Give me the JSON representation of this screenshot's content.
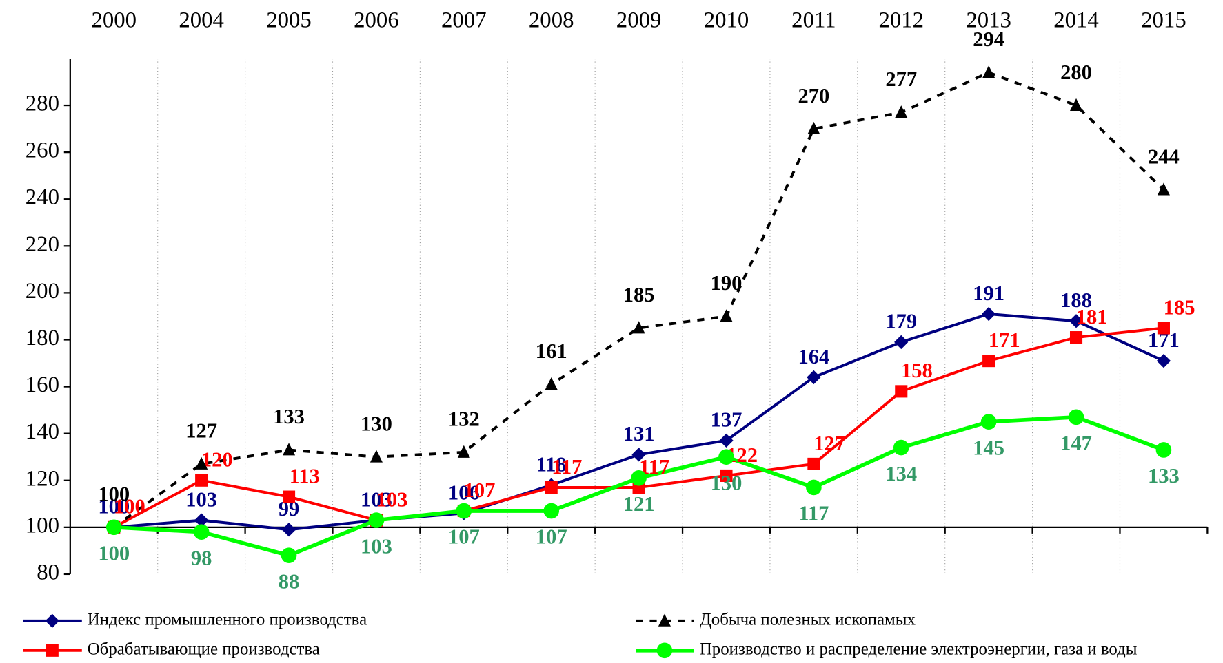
{
  "chart_data": {
    "type": "line",
    "categories": [
      "2000",
      "2004",
      "2005",
      "2006",
      "2007",
      "2008",
      "2009",
      "2010",
      "2011",
      "2012",
      "2013",
      "2014",
      "2015"
    ],
    "ylim": [
      80,
      300
    ],
    "yticks": [
      80,
      100,
      120,
      140,
      160,
      180,
      200,
      220,
      240,
      260,
      280
    ],
    "series": [
      {
        "name": "Индекс промышленного производства",
        "color": "#000080",
        "label_color": "#000080",
        "marker": "diamond",
        "dash": false,
        "values": [
          100,
          103,
          99,
          103,
          106,
          118,
          131,
          137,
          164,
          179,
          191,
          188,
          171
        ]
      },
      {
        "name": "Обрабатывающие производства",
        "color": "#ff0000",
        "label_color": "#ff0000",
        "marker": "square",
        "dash": false,
        "values": [
          100,
          120,
          113,
          103,
          107,
          117,
          117,
          122,
          127,
          158,
          171,
          181,
          185
        ]
      },
      {
        "name": "Добыча полезных ископамых",
        "color": "#000000",
        "label_color": "#000000",
        "marker": "triangle",
        "dash": true,
        "values": [
          100,
          127,
          133,
          130,
          132,
          161,
          185,
          190,
          270,
          277,
          294,
          280,
          244
        ]
      },
      {
        "name": "Производство и распределение электроэнергии, газа и воды",
        "color": "#00ff00",
        "label_color": "#339966",
        "marker": "circle",
        "dash": false,
        "values": [
          100,
          98,
          88,
          103,
          107,
          107,
          121,
          130,
          117,
          134,
          145,
          147,
          133
        ]
      }
    ]
  }
}
